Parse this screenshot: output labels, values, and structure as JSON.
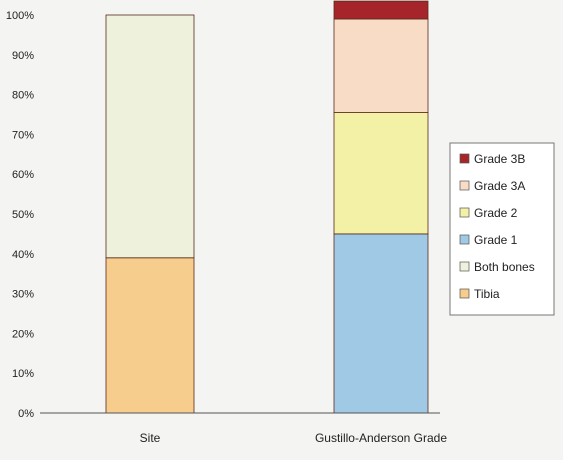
{
  "chart_data": {
    "type": "bar",
    "stacked": true,
    "categories": [
      "Site",
      "Gustillo-Anderson Grade"
    ],
    "ylim": [
      0,
      100
    ],
    "y_ticks": [
      "0%",
      "10%",
      "20%",
      "30%",
      "40%",
      "50%",
      "60%",
      "70%",
      "80%",
      "90%",
      "100%"
    ],
    "series": [
      {
        "name": "Tibia",
        "color": "#f6cd8c",
        "values": [
          39,
          0
        ]
      },
      {
        "name": "Both bones",
        "color": "#eef1dc",
        "values": [
          61,
          0
        ]
      },
      {
        "name": "Grade 1",
        "color": "#9fc9e4",
        "values": [
          0,
          45
        ]
      },
      {
        "name": "Grade 2",
        "color": "#f3f1a6",
        "values": [
          0,
          30.5
        ]
      },
      {
        "name": "Grade 3A",
        "color": "#f8dcc6",
        "values": [
          0,
          23.5
        ]
      },
      {
        "name": "Grade 3B",
        "color": "#a5252b",
        "values": [
          0,
          4.5
        ]
      }
    ],
    "legend": {
      "position": "right",
      "order": [
        "Grade 3B",
        "Grade 3A",
        "Grade 2",
        "Grade 1",
        "Both bones",
        "Tibia"
      ]
    },
    "grid": false
  }
}
